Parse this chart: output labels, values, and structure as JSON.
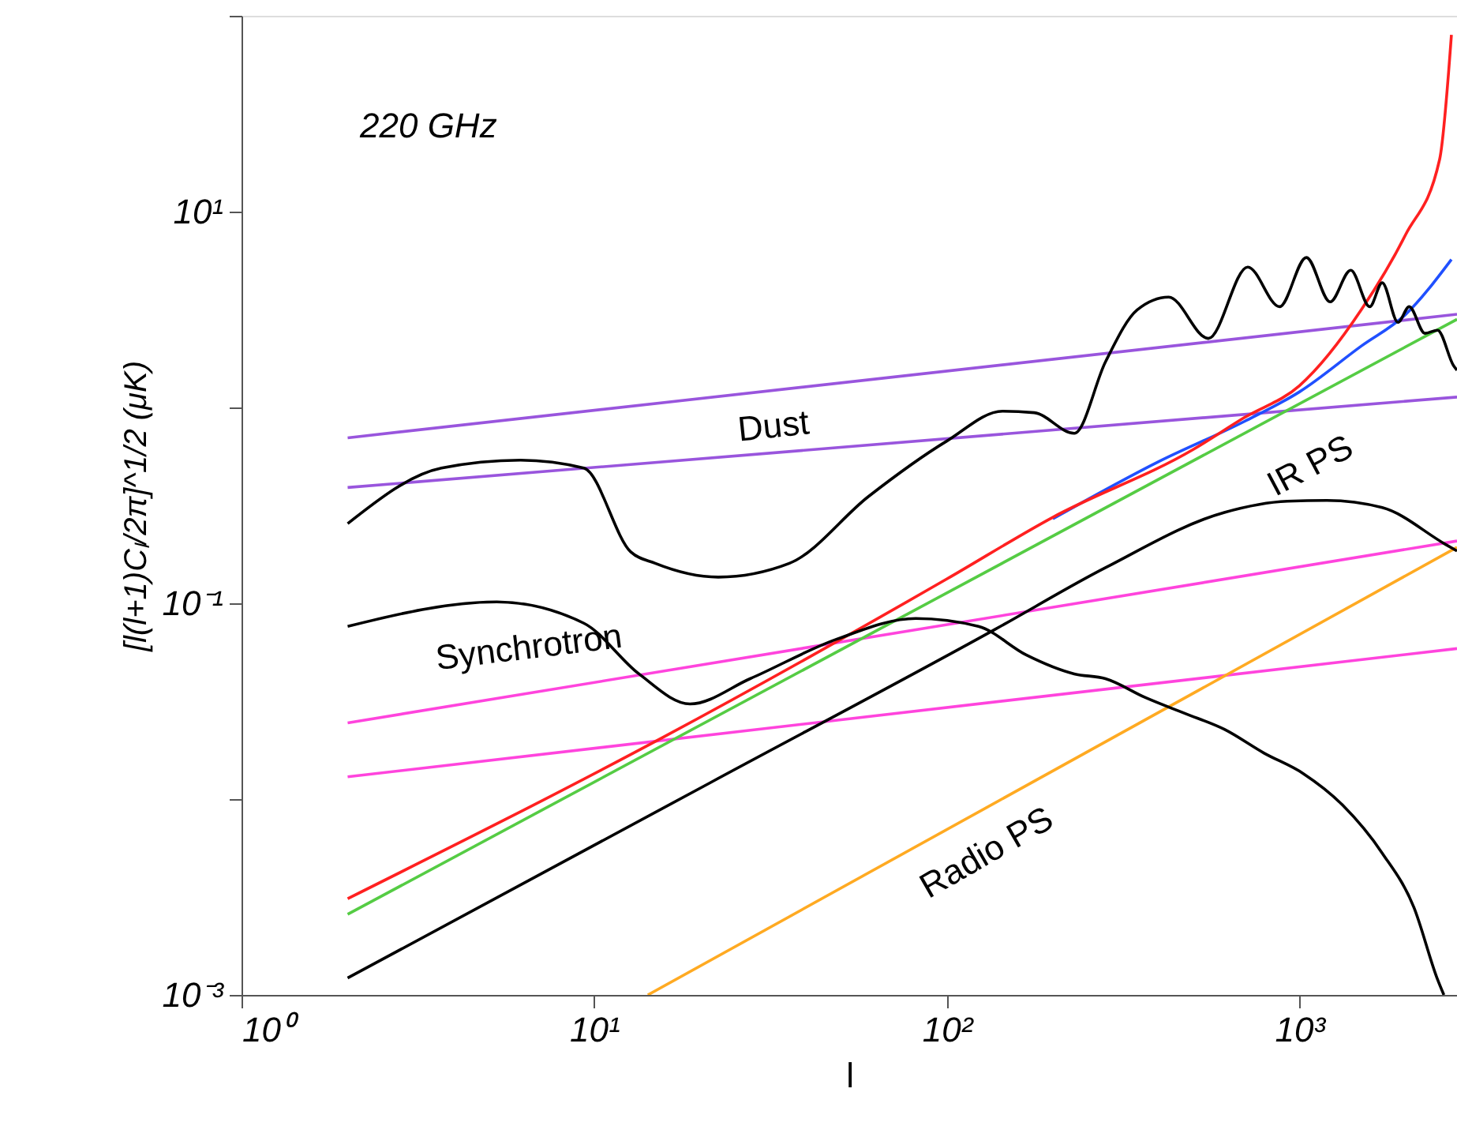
{
  "chart_data": {
    "type": "line",
    "xlabel": "l",
    "ylabel": "[l(l+1)Cₗ/2π]^1/2 (μK)",
    "log": "xy",
    "grid": false,
    "marker": "none",
    "line_style": "solid",
    "xlim": [
      1,
      2800
    ],
    "ylim": [
      0.001,
      100
    ],
    "xticks": [
      {
        "value": 1,
        "label": "10⁰"
      },
      {
        "value": 10,
        "label": "10¹"
      },
      {
        "value": 100,
        "label": "10²"
      },
      {
        "value": 1000,
        "label": "10³"
      }
    ],
    "yticks": [
      {
        "value": 0.001,
        "label": "10⁻³"
      },
      {
        "value": 0.01,
        "label": null
      },
      {
        "value": 0.1,
        "label": "10⁻¹"
      },
      {
        "value": 1,
        "label": null
      },
      {
        "value": 10,
        "label": "10¹"
      },
      {
        "value": 100,
        "label": null
      }
    ],
    "series": [
      {
        "color": "#9955dd",
        "x": [
          2,
          2800
        ],
        "values": [
          0.7,
          2.99
        ]
      },
      {
        "color": "#9955dd",
        "x": [
          2,
          2800
        ],
        "values": [
          0.39,
          1.13
        ]
      },
      {
        "color": "#ff44dd",
        "x": [
          2,
          2800
        ],
        "values": [
          0.0245,
          0.208
        ]
      },
      {
        "color": "#ff44dd",
        "x": [
          2,
          2800
        ],
        "values": [
          0.013,
          0.0587
        ]
      },
      {
        "color": "#ffaa22",
        "x": [
          14.2,
          2800
        ],
        "values": [
          0.001,
          0.193
        ]
      },
      {
        "color": "#55cc44",
        "x": [
          2,
          2800
        ],
        "values": [
          0.00258,
          2.82
        ]
      },
      {
        "color": "#2050ff",
        "x": [
          200,
          400,
          700,
          1000,
          1500,
          2000,
          2700
        ],
        "values": [
          0.27,
          0.53,
          0.85,
          1.2,
          2.06,
          2.98,
          5.7
        ]
      },
      {
        "color": "#ff2020",
        "x": [
          2,
          15.7,
          100,
          200,
          500,
          700,
          1000,
          1500,
          2000,
          2500,
          2700
        ],
        "values": [
          0.0031,
          0.0207,
          0.133,
          0.275,
          0.61,
          0.89,
          1.29,
          3.16,
          7.6,
          18.5,
          80
        ]
      },
      {
        "color": "#000000",
        "x": [
          2,
          21.3,
          137,
          282,
          613,
          925,
          1197,
          1718,
          2596,
          2800
        ],
        "values": [
          0.00122,
          0.0121,
          0.0735,
          0.152,
          0.291,
          0.332,
          0.335,
          0.308,
          0.2,
          0.185
        ]
      },
      {
        "color": "#000000",
        "x": [
          2,
          3.69,
          6.18,
          9.35,
          12.7,
          14.9,
          22.5,
          35.8,
          60,
          100,
          144,
          177,
          230,
          282,
          347,
          426,
          552,
          714,
          879,
          1047,
          1223,
          1399,
          1584,
          1718,
          1905,
          2049,
          2271,
          2466,
          2735,
          2800
        ],
        "values": [
          0.255,
          0.49,
          0.538,
          0.49,
          0.183,
          0.16,
          0.136,
          0.16,
          0.351,
          0.673,
          0.957,
          0.94,
          0.738,
          1.71,
          3.15,
          3.66,
          2.25,
          5.21,
          3.27,
          5.83,
          3.46,
          5.02,
          3.27,
          4.33,
          2.72,
          3.27,
          2.39,
          2.48,
          1.64,
          1.55
        ]
      },
      {
        "color": "#000000",
        "x": [
          2,
          5.3,
          9.35,
          13.4,
          18.7,
          27.7,
          48.8,
          81.7,
          123,
          168,
          230,
          282,
          366,
          473,
          613,
          793,
          1026,
          1328,
          1718,
          2113,
          2466,
          2570
        ],
        "values": [
          0.0762,
          0.1016,
          0.0791,
          0.0436,
          0.0306,
          0.0412,
          0.0656,
          0.0836,
          0.0762,
          0.0545,
          0.0436,
          0.0412,
          0.033,
          0.0274,
          0.0227,
          0.0172,
          0.0135,
          0.0093,
          0.0053,
          0.0028,
          0.0012,
          0.001
        ]
      }
    ],
    "annotations": [
      "220 GHz",
      "Dust",
      "Synchrotron",
      "IR PS",
      "Radio PS"
    ]
  }
}
